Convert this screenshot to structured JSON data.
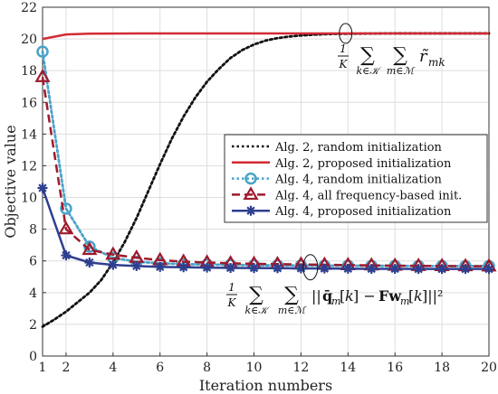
{
  "chart_data": {
    "type": "line",
    "xlabel": "Iteration numbers",
    "ylabel": "Objective value",
    "xlim": [
      1,
      20
    ],
    "ylim": [
      0,
      22
    ],
    "xticks": [
      1,
      2,
      4,
      6,
      8,
      10,
      12,
      14,
      16,
      18,
      20
    ],
    "yticks": [
      0,
      2,
      4,
      6,
      8,
      10,
      12,
      14,
      16,
      18,
      20,
      22
    ],
    "grid": true,
    "legend_position": "center-right",
    "series": [
      {
        "name": "Alg. 2, random initialization",
        "color": "#111111",
        "dash": "dotted",
        "marker": "none",
        "x": [
          1,
          1.5,
          2,
          2.5,
          3,
          3.5,
          4,
          4.5,
          5,
          5.5,
          6,
          6.5,
          7,
          7.5,
          8,
          8.5,
          9,
          9.5,
          10,
          10.5,
          11,
          11.5,
          12,
          12.5,
          13,
          13.5,
          14,
          15,
          16,
          17,
          18,
          19,
          20
        ],
        "y": [
          1.85,
          2.3,
          2.8,
          3.4,
          4.0,
          4.8,
          5.9,
          7.2,
          8.7,
          10.4,
          12.1,
          13.7,
          15.1,
          16.3,
          17.3,
          18.1,
          18.8,
          19.3,
          19.65,
          19.9,
          20.05,
          20.15,
          20.22,
          20.27,
          20.3,
          20.32,
          20.33,
          20.34,
          20.35,
          20.35,
          20.35,
          20.35,
          20.35
        ]
      },
      {
        "name": "Alg. 2, proposed initialization",
        "color": "#d42a33",
        "dash": "solid",
        "marker": "none",
        "x": [
          1,
          2,
          3,
          4,
          5,
          6,
          7,
          8,
          9,
          10,
          11,
          12,
          13,
          14,
          15,
          16,
          17,
          18,
          19,
          20
        ],
        "y": [
          20.0,
          20.28,
          20.33,
          20.34,
          20.35,
          20.35,
          20.35,
          20.35,
          20.35,
          20.35,
          20.35,
          20.35,
          20.35,
          20.35,
          20.35,
          20.35,
          20.35,
          20.35,
          20.35,
          20.35
        ]
      },
      {
        "name": "Alg. 4, random initialization",
        "color": "#4aa3c9",
        "dash": "dotted",
        "marker": "circle",
        "x": [
          1,
          2,
          3,
          4,
          5,
          6,
          7,
          8,
          9,
          10,
          11,
          12,
          13,
          14,
          15,
          16,
          17,
          18,
          19,
          20
        ],
        "y": [
          19.2,
          9.3,
          6.9,
          6.2,
          5.95,
          5.85,
          5.8,
          5.77,
          5.75,
          5.73,
          5.72,
          5.71,
          5.7,
          5.7,
          5.69,
          5.69,
          5.68,
          5.68,
          5.68,
          5.68
        ]
      },
      {
        "name": "Alg. 4, all frequency-based init.",
        "color": "#9e1a2c",
        "dash": "dashed",
        "marker": "triangle",
        "x": [
          1,
          2,
          3,
          4,
          5,
          6,
          7,
          8,
          9,
          10,
          11,
          12,
          13,
          14,
          15,
          16,
          17,
          18,
          19,
          20
        ],
        "y": [
          17.6,
          8.0,
          6.7,
          6.4,
          6.2,
          6.05,
          5.95,
          5.9,
          5.85,
          5.82,
          5.8,
          5.78,
          5.76,
          5.74,
          5.72,
          5.7,
          5.69,
          5.68,
          5.67,
          5.66
        ]
      },
      {
        "name": "Alg. 4, proposed initialization",
        "color": "#2f3f8f",
        "dash": "solid",
        "marker": "star",
        "x": [
          1,
          2,
          3,
          4,
          5,
          6,
          7,
          8,
          9,
          10,
          11,
          12,
          13,
          14,
          15,
          16,
          17,
          18,
          19,
          20
        ],
        "y": [
          10.6,
          6.35,
          5.9,
          5.75,
          5.68,
          5.62,
          5.6,
          5.58,
          5.56,
          5.55,
          5.54,
          5.53,
          5.52,
          5.51,
          5.5,
          5.5,
          5.49,
          5.49,
          5.49,
          5.49
        ]
      }
    ],
    "annotations": [
      {
        "text_prefix": "1",
        "text_den": "K",
        "text_body": "∑ ∑ r̃",
        "sub_sum1": "k∈𝒦",
        "sub_sum2": "m∈ℳ",
        "sub_r": "mk",
        "ellipse_at": [
          13.9,
          20.35
        ]
      },
      {
        "text_prefix": "1",
        "text_den": "K",
        "text_body": "∑ ∑ ||q̄",
        "sub_sum1": "k∈𝒦",
        "sub_sum2": "m∈ℳ",
        "rest": "[k] − Fw",
        "rest2": "[k]||²",
        "sub_q": "m",
        "sub_w": "m",
        "ellipse_at": [
          12.4,
          5.6
        ]
      }
    ]
  }
}
